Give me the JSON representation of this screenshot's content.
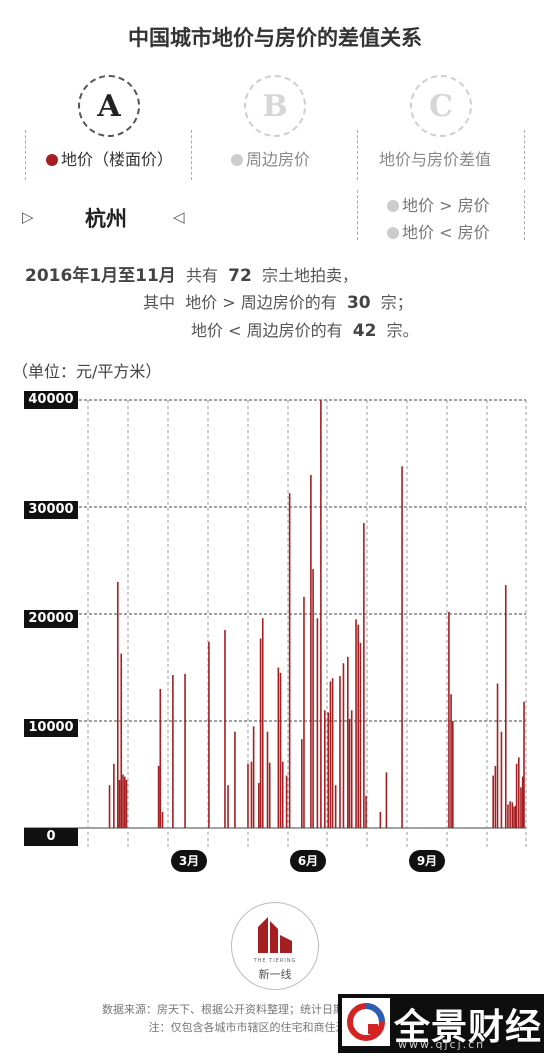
{
  "title": "中国城市地价与房价的差值关系",
  "tabs": [
    {
      "letter": "A",
      "label": "地价（楼面价）",
      "dot_color": "#a51e22",
      "active": true
    },
    {
      "letter": "B",
      "label": "周边房价",
      "dot_color": "#cccccc",
      "active": false
    },
    {
      "letter": "C",
      "label": "地价与房价差值",
      "active": false
    }
  ],
  "selector": {
    "prev_icon": "▷",
    "city": "杭州",
    "next_icon": "◁"
  },
  "legend": [
    {
      "label": "地价 > 房价",
      "dot_color": "#cccccc"
    },
    {
      "label": "地价 < 房价",
      "dot_color": "#cccccc"
    }
  ],
  "summary": {
    "line1_pre": "2016年1月至11月",
    "line1_mid": "共有",
    "line1_count": "72",
    "line1_post": "宗土地拍卖，",
    "line2_pre": "其中",
    "line2_text": "地价 > 周边房价的有",
    "line2_count": "30",
    "line2_post": "宗；",
    "line3_text": "地价 < 周边房价的有",
    "line3_count": "42",
    "line3_post": "宗。"
  },
  "chart_data": {
    "type": "bar",
    "ylabel": "（单位：元/平方米）",
    "ylim": [
      0,
      40000
    ],
    "yticks": [
      40000,
      30000,
      20000,
      10000,
      0
    ],
    "ytick_labels": [
      "40000",
      "30000",
      "20000",
      "10000",
      "0"
    ],
    "grid": true,
    "bar_color": "#a51e22",
    "month_labels": [
      "3月",
      "6月",
      "9月"
    ],
    "x_index_range": [
      0,
      100
    ],
    "month_positions": [
      23.5,
      53.5,
      83.5
    ],
    "x": [
      4.5,
      5.5,
      6.4,
      6.8,
      7.2,
      7.6,
      8.0,
      8.4,
      15.8,
      16.2,
      16.7,
      19.1,
      21.9,
      27.4,
      31.1,
      31.8,
      33.4,
      36.4,
      37.2,
      37.7,
      38.9,
      39.3,
      39.8,
      40.9,
      41.4,
      43.4,
      43.9,
      44.4,
      45.3,
      46.0,
      48.8,
      49.3,
      50.9,
      51.4,
      52.4,
      53.2,
      54.1,
      54.9,
      55.4,
      55.9,
      56.6,
      57.6,
      58.4,
      59.4,
      59.8,
      60.3,
      61.3,
      61.8,
      62.3,
      63.1,
      63.6,
      66.9,
      68.3,
      71.9,
      82.7,
      83.2,
      83.6,
      98.3,
      98.8,
      99.3,
      99.7,
      100.0,
      92.9,
      93.4,
      93.9,
      94.8,
      95.8,
      96.3,
      96.8,
      97.3,
      97.7,
      98.1
    ],
    "values": [
      4000,
      6000,
      23000,
      4500,
      16300,
      5000,
      4800,
      4500,
      5800,
      13000,
      1500,
      14300,
      14400,
      17400,
      18500,
      4000,
      9000,
      6000,
      6200,
      9500,
      4200,
      17700,
      19600,
      9000,
      6100,
      15000,
      14500,
      6200,
      4900,
      31300,
      8300,
      21600,
      33000,
      24200,
      19600,
      40000,
      11000,
      10800,
      13700,
      14000,
      4000,
      14200,
      15400,
      16000,
      10200,
      11000,
      19500,
      19000,
      17300,
      28500,
      3000,
      1500,
      5200,
      33800,
      20200,
      12500,
      10000,
      6000,
      6600,
      3800,
      4800,
      11800,
      4900,
      5800,
      13500,
      9000,
      22700,
      2200,
      2500,
      2400,
      2000,
      2100
    ]
  },
  "logo": {
    "tiny": "THE TIERING",
    "name": "新一线"
  },
  "footnotes": [
    "数据来源：房天下、根据公开资料整理；统计日期：2016年1月至11月",
    "注：仅包含各城市市辖区的住宅和商住混合成交地块"
  ],
  "watermark": {
    "name": "全景财经",
    "url": "www.qjcj.cn"
  }
}
